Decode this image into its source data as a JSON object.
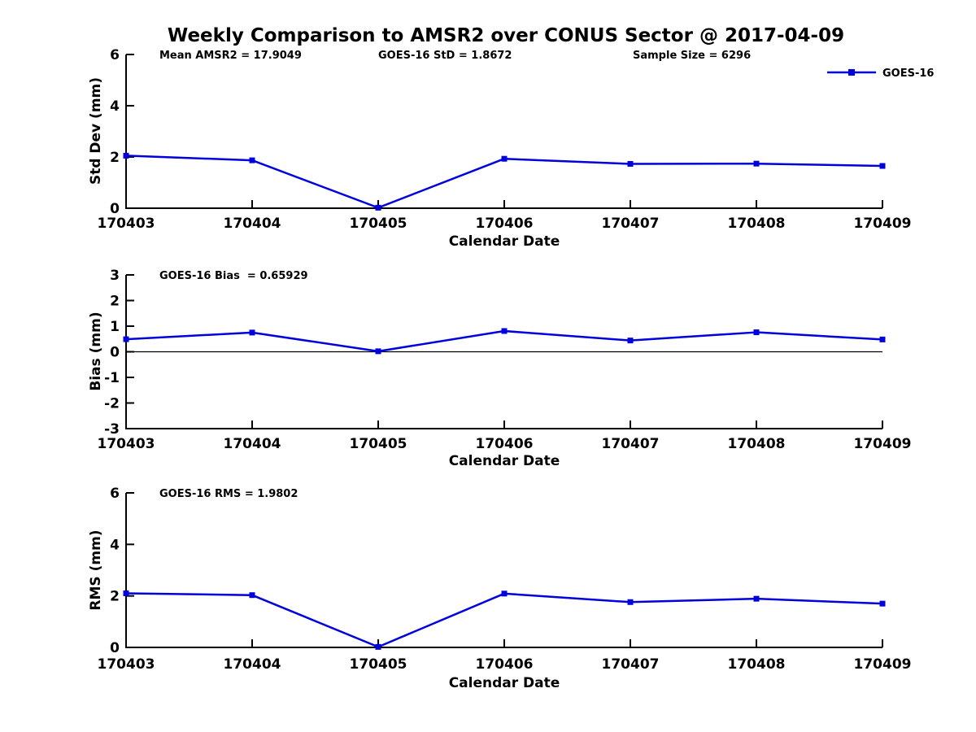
{
  "title": "Weekly Comparison to AMSR2 over CONUS Sector @ 2017-04-09",
  "line_color": "#0000DD",
  "legend": {
    "label": "GOES-16"
  },
  "chart_data": [
    {
      "type": "line",
      "name": "std-dev",
      "ylabel": "Std Dev (mm)",
      "xlabel": "Calendar Date",
      "categories": [
        "170403",
        "170404",
        "170405",
        "170406",
        "170407",
        "170408",
        "170409"
      ],
      "series": [
        {
          "name": "GOES-16",
          "values": [
            2.05,
            1.87,
            0.02,
            1.93,
            1.73,
            1.74,
            1.65
          ]
        }
      ],
      "ylim": [
        0,
        6
      ],
      "yticks": [
        0,
        2,
        4,
        6
      ],
      "zero_line": false,
      "grid": false,
      "legend_position": "top-right",
      "annotations": [
        "Mean AMSR2 = 17.9049",
        "GOES-16 StD = 1.8672",
        "Sample Size = 6296"
      ]
    },
    {
      "type": "line",
      "name": "bias",
      "ylabel": "Bias (mm)",
      "xlabel": "Calendar Date",
      "categories": [
        "170403",
        "170404",
        "170405",
        "170406",
        "170407",
        "170408",
        "170409"
      ],
      "series": [
        {
          "name": "GOES-16",
          "values": [
            0.49,
            0.75,
            0.02,
            0.81,
            0.44,
            0.76,
            0.48
          ]
        }
      ],
      "ylim": [
        -3,
        3
      ],
      "yticks": [
        -3,
        -2,
        -1,
        0,
        1,
        2,
        3
      ],
      "zero_line": true,
      "grid": false,
      "annotations": [
        "GOES-16 Bias  = 0.65929"
      ]
    },
    {
      "type": "line",
      "name": "rms",
      "ylabel": "RMS (mm)",
      "xlabel": "Calendar Date",
      "categories": [
        "170403",
        "170404",
        "170405",
        "170406",
        "170407",
        "170408",
        "170409"
      ],
      "series": [
        {
          "name": "GOES-16",
          "values": [
            2.1,
            2.03,
            0.02,
            2.09,
            1.76,
            1.89,
            1.7
          ]
        }
      ],
      "ylim": [
        0,
        6
      ],
      "yticks": [
        0,
        2,
        4,
        6
      ],
      "zero_line": false,
      "grid": false,
      "annotations": [
        "GOES-16 RMS = 1.9802"
      ]
    }
  ]
}
